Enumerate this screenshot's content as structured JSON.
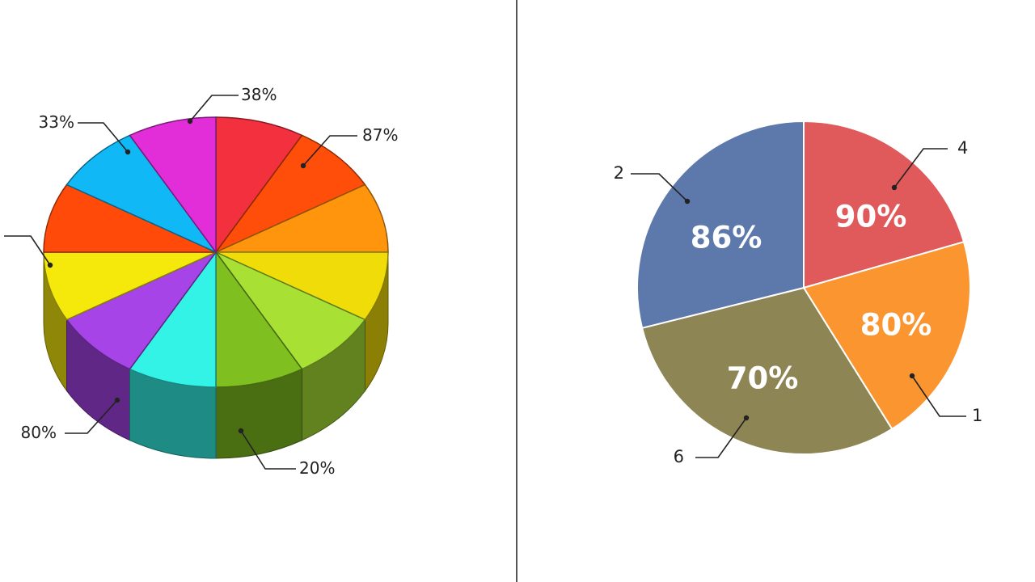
{
  "colors": {
    "divider": "#555555",
    "text": "#222222"
  },
  "chart_data": [
    {
      "type": "pie",
      "style": "3d",
      "title": "",
      "slices": [
        {
          "key": "red-top",
          "color": "#f2303e"
        },
        {
          "key": "orange-red-top",
          "color": "#ff4d0a"
        },
        {
          "key": "orange",
          "color": "#ff950c"
        },
        {
          "key": "yellow-right",
          "color": "#f0dc08"
        },
        {
          "key": "lime",
          "color": "#a8e034"
        },
        {
          "key": "green",
          "color": "#7fbf20"
        },
        {
          "key": "cyan",
          "color": "#33f2e6"
        },
        {
          "key": "purple",
          "color": "#a644e8"
        },
        {
          "key": "yellow-left",
          "color": "#f5e90c"
        },
        {
          "key": "orange-red-left",
          "color": "#ff4a0a"
        },
        {
          "key": "blue",
          "color": "#10b8f5"
        },
        {
          "key": "magenta",
          "color": "#e22ed8"
        }
      ],
      "callouts": [
        {
          "target": "red-top",
          "text": "38%"
        },
        {
          "target": "magenta",
          "text": "33%"
        },
        {
          "target": "orange",
          "text": "87%"
        },
        {
          "target": "orange-red-left",
          "text": ""
        },
        {
          "target": "yellow-left",
          "text": "80%"
        },
        {
          "target": "purple",
          "text": "20%"
        }
      ]
    },
    {
      "type": "pie",
      "title": "",
      "slices": [
        {
          "label": "4",
          "value_label": "90%",
          "color": "#e05a5c"
        },
        {
          "label": "1",
          "value_label": "80%",
          "color": "#fa952f"
        },
        {
          "label": "6",
          "value_label": "70%",
          "color": "#8e8555"
        },
        {
          "label": "2",
          "value_label": "86%",
          "color": "#5d79ac"
        }
      ]
    }
  ]
}
